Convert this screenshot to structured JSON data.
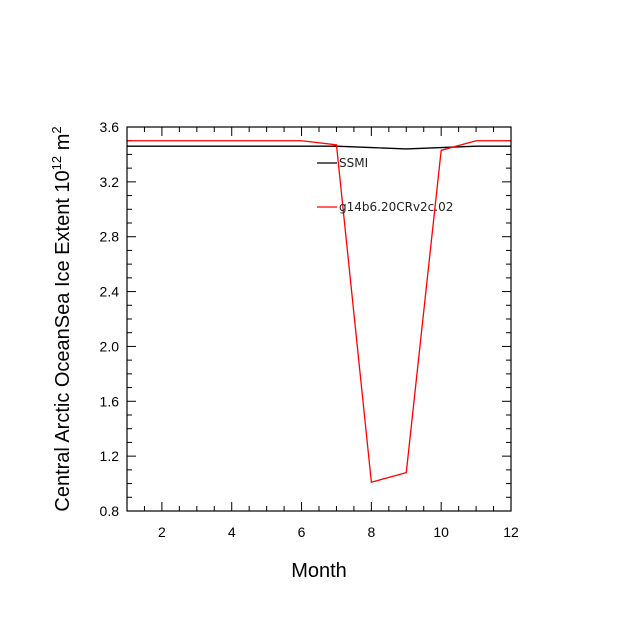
{
  "chart_data": {
    "type": "line",
    "xlabel": "Month",
    "ylabel_main": "Central Arctic OceanSea Ice Extent 10",
    "ylabel_sup": "12",
    "ylabel_unit": " m",
    "ylabel_unit_sup": "2",
    "xlim": [
      1,
      12
    ],
    "ylim": [
      0.8,
      3.6
    ],
    "xticks": [
      2,
      4,
      6,
      8,
      10,
      12
    ],
    "xtick_labels": [
      "2",
      "4",
      "6",
      "8",
      "10",
      "12"
    ],
    "yticks": [
      0.8,
      1.2,
      1.6,
      2.0,
      2.4,
      2.8,
      3.2,
      3.6
    ],
    "ytick_labels": [
      "0.8",
      "1.2",
      "1.6",
      "2.0",
      "2.4",
      "2.8",
      "3.2",
      "3.6"
    ],
    "legend_placement": "top-center",
    "series": [
      {
        "name": "SSMI",
        "color": "#000000",
        "x": [
          1,
          2,
          3,
          4,
          5,
          6,
          7,
          8,
          9,
          10,
          11,
          12
        ],
        "values": [
          3.46,
          3.46,
          3.46,
          3.46,
          3.46,
          3.46,
          3.46,
          3.45,
          3.44,
          3.45,
          3.46,
          3.46
        ]
      },
      {
        "name": "g14b6.20CRv2c.02",
        "color": "#ff0000",
        "x": [
          1,
          2,
          3,
          4,
          5,
          6,
          7,
          8,
          9,
          10,
          11,
          12
        ],
        "values": [
          3.5,
          3.5,
          3.5,
          3.5,
          3.5,
          3.5,
          3.47,
          1.01,
          1.08,
          3.43,
          3.5,
          3.5
        ]
      }
    ]
  }
}
